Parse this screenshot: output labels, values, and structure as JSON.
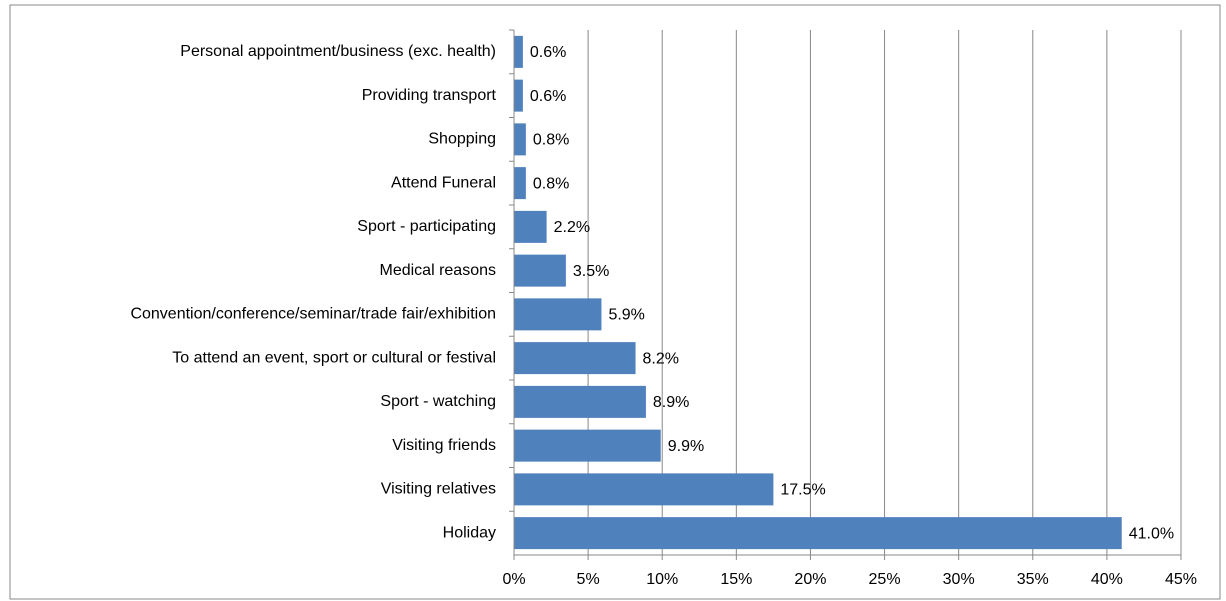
{
  "chart_data": {
    "type": "hbar",
    "categories": [
      "Personal appointment/business (exc. health)",
      "Providing transport",
      "Shopping",
      "Attend Funeral",
      "Sport - participating",
      "Medical reasons",
      "Convention/conference/seminar/trade fair/exhibition",
      "To attend an event, sport or cultural or festival",
      "Sport - watching",
      "Visiting friends",
      "Visiting relatives",
      "Holiday"
    ],
    "values": [
      0.6,
      0.6,
      0.8,
      0.8,
      2.2,
      3.5,
      5.9,
      8.2,
      8.9,
      9.9,
      17.5,
      41.0
    ],
    "value_labels": [
      "0.6%",
      "0.6%",
      "0.8%",
      "0.8%",
      "2.2%",
      "3.5%",
      "5.9%",
      "8.2%",
      "8.9%",
      "9.9%",
      "17.5%",
      "41.0%"
    ],
    "color": "#4f81bd",
    "xlim": [
      0,
      45
    ],
    "xticks": [
      {
        "value": 0,
        "label": "0%"
      },
      {
        "value": 5,
        "label": "5%"
      },
      {
        "value": 10,
        "label": "10%"
      },
      {
        "value": 15,
        "label": "15%"
      },
      {
        "value": 20,
        "label": "20%"
      },
      {
        "value": 25,
        "label": "25%"
      },
      {
        "value": 30,
        "label": "30%"
      },
      {
        "value": 35,
        "label": "35%"
      },
      {
        "value": 40,
        "label": "40%"
      },
      {
        "value": 45,
        "label": "45%"
      }
    ],
    "grid": true
  }
}
